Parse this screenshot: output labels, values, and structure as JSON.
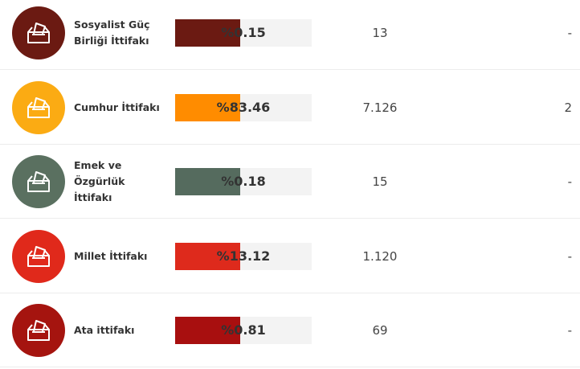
{
  "rows": [
    {
      "name": "Sosyalist Güç Birliği İttifakı",
      "percent": "%0.15",
      "votes": "13",
      "seats": "-",
      "icon_color": "#6b1a12",
      "bar_color": "#6b1a12"
    },
    {
      "name": "Cumhur İttifakı",
      "percent": "%83.46",
      "votes": "7.126",
      "seats": "2",
      "icon_color": "#fbab13",
      "bar_color": "#ff8c00"
    },
    {
      "name": "Emek ve Özgürlük İttifakı",
      "percent": "%0.18",
      "votes": "15",
      "seats": "-",
      "icon_color": "#5a7060",
      "bar_color": "#556b5e"
    },
    {
      "name": "Millet İttifakı",
      "percent": "%13.12",
      "votes": "1.120",
      "seats": "-",
      "icon_color": "#e0291b",
      "bar_color": "#de2a1c"
    },
    {
      "name": "Ata ittifakı",
      "percent": "%0.81",
      "votes": "69",
      "seats": "-",
      "icon_color": "#a5140f",
      "bar_color": "#a80f0f"
    }
  ]
}
